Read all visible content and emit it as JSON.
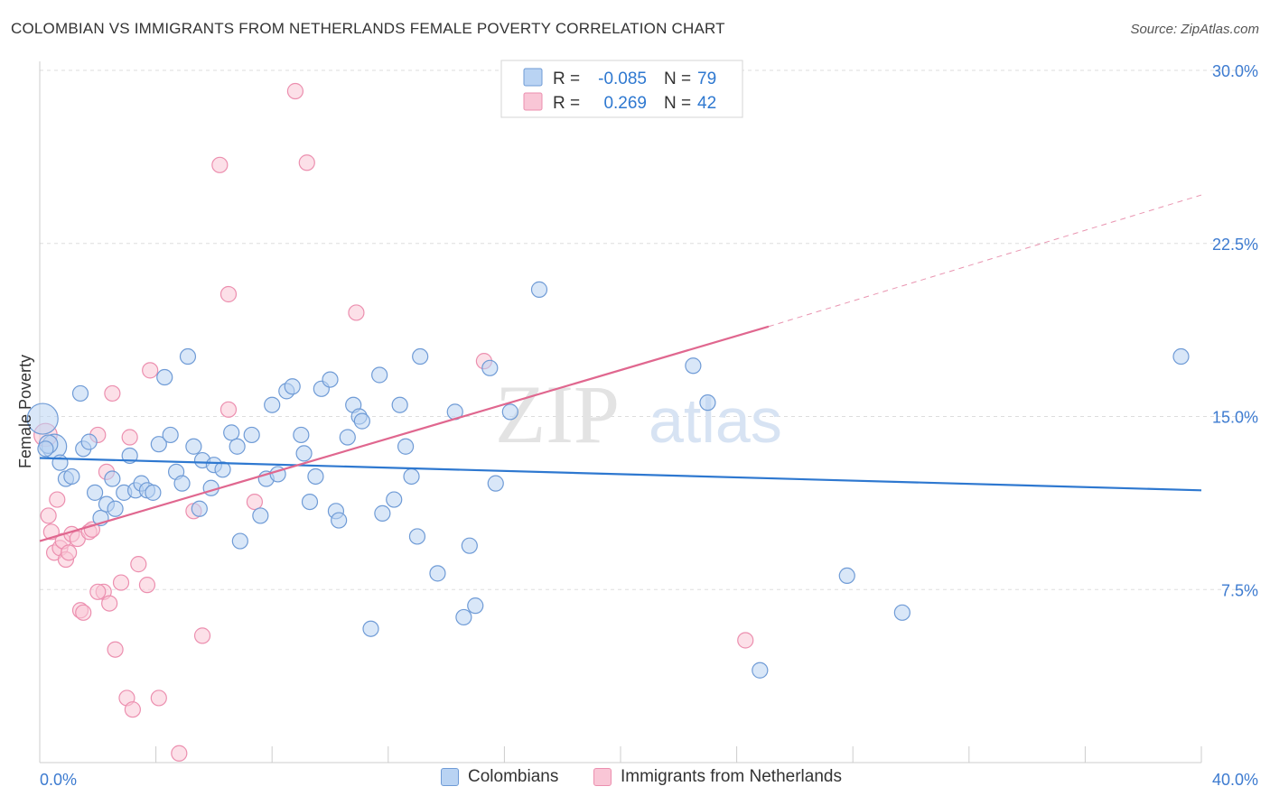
{
  "title": "COLOMBIAN VS IMMIGRANTS FROM NETHERLANDS FEMALE POVERTY CORRELATION CHART",
  "source": "Source: ZipAtlas.com",
  "watermark": {
    "zip": "ZIP",
    "atlas": "atlas"
  },
  "colors": {
    "blue_fill": "#b9d3f3",
    "blue_stroke": "#6f9bd6",
    "blue_line": "#2e78d0",
    "pink_fill": "#f9c6d6",
    "pink_stroke": "#ec8faf",
    "pink_line": "#e0678f",
    "axis_text": "#3d7bd0",
    "grid": "#dddddd"
  },
  "legend": {
    "rows": [
      {
        "r_label": "R =",
        "r_value": "-0.085",
        "n_label": "N =",
        "n_value": "79",
        "series": "blue"
      },
      {
        "r_label": "R =",
        "r_value": "0.269",
        "n_label": "N =",
        "n_value": "42",
        "series": "pink"
      }
    ]
  },
  "bottom_legend": {
    "colombians": "Colombians",
    "netherlands": "Immigrants from Netherlands"
  },
  "chart_data": {
    "type": "scatter",
    "title": "COLOMBIAN VS IMMIGRANTS FROM NETHERLANDS FEMALE POVERTY CORRELATION CHART",
    "xlabel": "",
    "ylabel": "Female Poverty",
    "xlim": [
      0,
      40
    ],
    "ylim": [
      0,
      30
    ],
    "x_tick_labels": [
      "0.0%",
      "40.0%"
    ],
    "y_ticks": [
      7.5,
      15.0,
      22.5,
      30.0
    ],
    "y_tick_labels": [
      "7.5%",
      "15.0%",
      "22.5%",
      "30.0%"
    ],
    "grid": true,
    "legend_position": "top-center",
    "series": [
      {
        "name": "Colombians",
        "color": "blue",
        "regression": {
          "x": [
            0,
            40
          ],
          "y": [
            13.2,
            11.8
          ]
        },
        "points": [
          [
            0.1,
            14.9,
            2.0
          ],
          [
            0.5,
            13.7,
            1.6
          ],
          [
            0.3,
            13.8,
            1.2
          ],
          [
            0.7,
            13.0,
            1.0
          ],
          [
            0.9,
            12.3,
            1.0
          ],
          [
            1.1,
            12.4,
            1.0
          ],
          [
            1.4,
            16.0,
            1.0
          ],
          [
            1.5,
            13.6,
            1.0
          ],
          [
            1.7,
            13.9,
            1.0
          ],
          [
            1.9,
            11.7,
            1.0
          ],
          [
            2.1,
            10.6,
            1.0
          ],
          [
            2.3,
            11.2,
            1.0
          ],
          [
            2.5,
            12.3,
            1.0
          ],
          [
            2.6,
            11.0,
            1.0
          ],
          [
            2.9,
            11.7,
            1.0
          ],
          [
            3.1,
            13.3,
            1.0
          ],
          [
            3.3,
            11.8,
            1.0
          ],
          [
            3.5,
            12.1,
            1.0
          ],
          [
            3.7,
            11.8,
            1.0
          ],
          [
            3.9,
            11.7,
            1.0
          ],
          [
            4.1,
            13.8,
            1.0
          ],
          [
            4.3,
            16.7,
            1.0
          ],
          [
            4.5,
            14.2,
            1.0
          ],
          [
            4.7,
            12.6,
            1.0
          ],
          [
            4.9,
            12.1,
            1.0
          ],
          [
            5.1,
            17.6,
            1.0
          ],
          [
            5.3,
            13.7,
            1.0
          ],
          [
            5.5,
            11.0,
            1.0
          ],
          [
            5.6,
            13.1,
            1.0
          ],
          [
            5.9,
            11.9,
            1.0
          ],
          [
            6.0,
            12.9,
            1.0
          ],
          [
            6.3,
            12.7,
            1.0
          ],
          [
            6.6,
            14.3,
            1.0
          ],
          [
            6.8,
            13.7,
            1.0
          ],
          [
            6.9,
            9.6,
            1.0
          ],
          [
            7.3,
            14.2,
            1.0
          ],
          [
            7.6,
            10.7,
            1.0
          ],
          [
            7.8,
            12.3,
            1.0
          ],
          [
            8.0,
            15.5,
            1.0
          ],
          [
            8.2,
            12.5,
            1.0
          ],
          [
            8.5,
            16.1,
            1.0
          ],
          [
            8.7,
            16.3,
            1.0
          ],
          [
            9.0,
            14.2,
            1.0
          ],
          [
            9.1,
            13.4,
            1.0
          ],
          [
            9.3,
            11.3,
            1.0
          ],
          [
            9.5,
            12.4,
            1.0
          ],
          [
            9.7,
            16.2,
            1.0
          ],
          [
            10.0,
            16.6,
            1.0
          ],
          [
            10.2,
            10.9,
            1.0
          ],
          [
            10.3,
            10.5,
            1.0
          ],
          [
            10.6,
            14.1,
            1.0
          ],
          [
            10.8,
            15.5,
            1.0
          ],
          [
            11.0,
            15.0,
            1.0
          ],
          [
            11.1,
            14.8,
            1.0
          ],
          [
            11.4,
            5.8,
            1.0
          ],
          [
            11.7,
            16.8,
            1.0
          ],
          [
            11.8,
            10.8,
            1.0
          ],
          [
            12.2,
            11.4,
            1.0
          ],
          [
            12.4,
            15.5,
            1.0
          ],
          [
            12.6,
            13.7,
            1.0
          ],
          [
            12.8,
            12.4,
            1.0
          ],
          [
            13.0,
            9.8,
            1.0
          ],
          [
            13.1,
            17.6,
            1.0
          ],
          [
            13.7,
            8.2,
            1.0
          ],
          [
            14.3,
            15.2,
            1.0
          ],
          [
            14.6,
            6.3,
            1.0
          ],
          [
            14.8,
            9.4,
            1.0
          ],
          [
            15.0,
            6.8,
            1.0
          ],
          [
            15.5,
            17.1,
            1.0
          ],
          [
            15.7,
            12.1,
            1.0
          ],
          [
            16.2,
            15.2,
            1.0
          ],
          [
            17.2,
            20.5,
            1.0
          ],
          [
            22.5,
            17.2,
            1.0
          ],
          [
            23.0,
            15.6,
            1.0
          ],
          [
            24.8,
            4.0,
            1.0
          ],
          [
            27.8,
            8.1,
            1.0
          ],
          [
            29.7,
            6.5,
            1.0
          ],
          [
            39.3,
            17.6,
            1.0
          ],
          [
            0.2,
            13.6,
            1.0
          ]
        ]
      },
      {
        "name": "Immigrants from Netherlands",
        "color": "pink",
        "regression": {
          "x": [
            0,
            25.1
          ],
          "y": [
            9.6,
            18.9
          ]
        },
        "regression_dashed": {
          "x": [
            25.1,
            40
          ],
          "y": [
            18.9,
            24.6
          ]
        },
        "points": [
          [
            0.2,
            14.2,
            1.5
          ],
          [
            0.3,
            10.7,
            1.0
          ],
          [
            0.4,
            10.0,
            1.0
          ],
          [
            0.5,
            9.1,
            1.0
          ],
          [
            0.6,
            11.4,
            1.0
          ],
          [
            0.7,
            9.3,
            1.0
          ],
          [
            0.8,
            9.6,
            1.0
          ],
          [
            0.9,
            8.8,
            1.0
          ],
          [
            1.0,
            9.1,
            1.0
          ],
          [
            1.1,
            9.9,
            1.0
          ],
          [
            1.3,
            9.7,
            1.0
          ],
          [
            1.4,
            6.6,
            1.0
          ],
          [
            1.5,
            6.5,
            1.0
          ],
          [
            1.7,
            10.0,
            1.0
          ],
          [
            1.8,
            10.1,
            1.0
          ],
          [
            2.0,
            14.2,
            1.0
          ],
          [
            2.2,
            7.4,
            1.0
          ],
          [
            2.3,
            12.6,
            1.0
          ],
          [
            2.4,
            6.9,
            1.0
          ],
          [
            2.5,
            16.0,
            1.0
          ],
          [
            2.6,
            4.9,
            1.0
          ],
          [
            2.8,
            7.8,
            1.0
          ],
          [
            3.0,
            2.8,
            1.0
          ],
          [
            3.1,
            14.1,
            1.0
          ],
          [
            3.2,
            2.3,
            1.0
          ],
          [
            3.4,
            8.6,
            1.0
          ],
          [
            3.7,
            7.7,
            1.0
          ],
          [
            3.8,
            17.0,
            1.0
          ],
          [
            4.1,
            2.8,
            1.0
          ],
          [
            4.8,
            0.4,
            1.0
          ],
          [
            5.3,
            10.9,
            1.0
          ],
          [
            5.6,
            5.5,
            1.0
          ],
          [
            6.2,
            25.9,
            1.0
          ],
          [
            6.5,
            20.3,
            1.0
          ],
          [
            6.5,
            15.3,
            1.0
          ],
          [
            7.4,
            11.3,
            1.0
          ],
          [
            8.8,
            29.1,
            1.0
          ],
          [
            9.2,
            26.0,
            1.0
          ],
          [
            10.9,
            19.5,
            1.0
          ],
          [
            15.3,
            17.4,
            1.0
          ],
          [
            24.3,
            5.3,
            1.0
          ],
          [
            2.0,
            7.4,
            1.0
          ]
        ]
      }
    ]
  }
}
